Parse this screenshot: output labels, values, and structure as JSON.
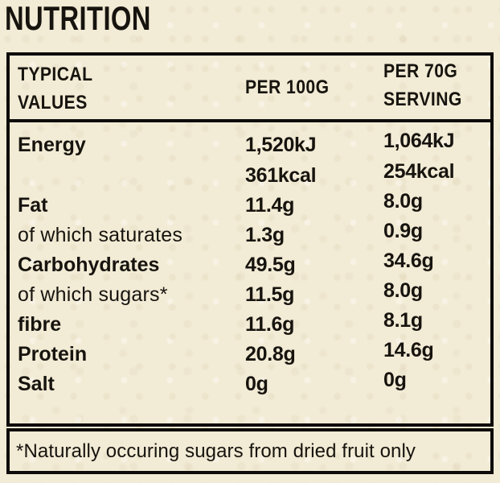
{
  "title": "NUTRITION",
  "colors": {
    "paper": "#f2ebd5",
    "ink": "#17140f",
    "border": "#0e0c09"
  },
  "table": {
    "header": {
      "typical_line1": "TYPICAL",
      "typical_line2": "VALUES",
      "per100": "PER 100G",
      "per70_line1": "PER 70G",
      "per70_line2": "SERVING"
    },
    "rows": [
      {
        "label": "Energy",
        "per100": [
          "1,520kJ",
          "361kcal"
        ],
        "per70": [
          "1,064kJ",
          "254kcal"
        ]
      },
      {
        "label": "Fat",
        "per100": [
          "11.4g"
        ],
        "per70": [
          "8.0g"
        ]
      },
      {
        "label": "of which saturates",
        "per100": [
          "1.3g"
        ],
        "per70": [
          "0.9g"
        ]
      },
      {
        "label": "Carbohydrates",
        "per100": [
          "49.5g"
        ],
        "per70": [
          "34.6g"
        ]
      },
      {
        "label": "of which sugars*",
        "per100": [
          "11.5g"
        ],
        "per70": [
          "8.0g"
        ]
      },
      {
        "label": "fibre",
        "per100": [
          "11.6g"
        ],
        "per70": [
          "8.1g"
        ]
      },
      {
        "label": "Protein",
        "per100": [
          "20.8g"
        ],
        "per70": [
          "14.6g"
        ]
      },
      {
        "label": "Salt",
        "per100": [
          "0g"
        ],
        "per70": [
          "0g"
        ]
      }
    ],
    "footnote": "*Naturally occuring sugars from dried fruit only"
  }
}
